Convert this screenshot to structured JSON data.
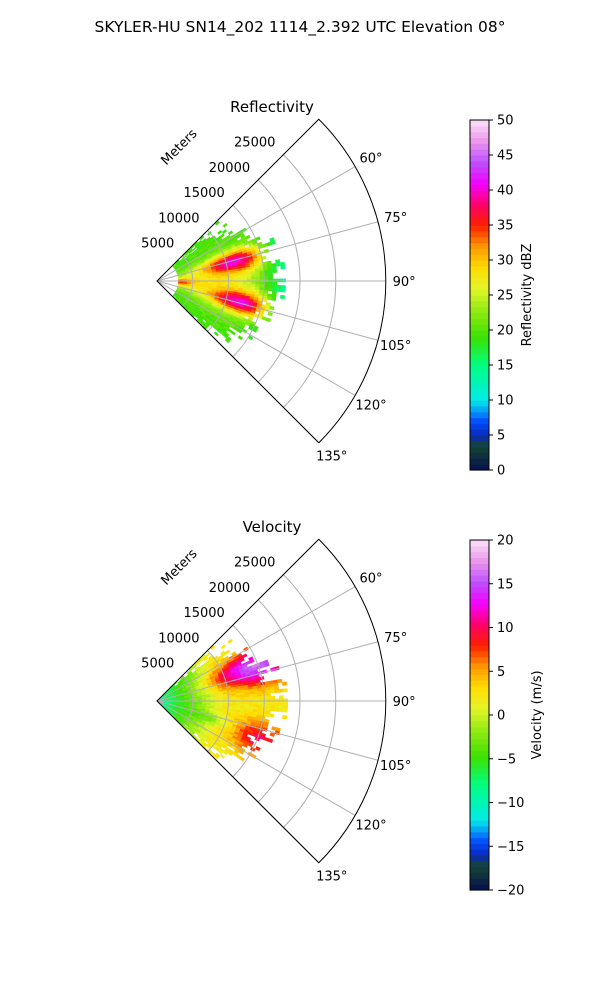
{
  "figure": {
    "title": "SKYLER-HU  SN14_202  1114_2.392 UTC Elevation 08°"
  },
  "chart_data": [
    {
      "type": "heatmap",
      "subtype": "polar-sector-ppi",
      "title": "Reflectivity",
      "range_label": "Meters",
      "range_ticks": [
        5000,
        10000,
        15000,
        20000,
        25000
      ],
      "range_tick_labels": [
        "5000",
        "10000",
        "15000",
        "20000",
        "25000"
      ],
      "range_max": 32000,
      "azimuth_ticks": [
        60,
        75,
        90,
        105,
        120,
        135
      ],
      "azimuth_tick_labels": [
        "60°",
        "75°",
        "90°",
        "105°",
        "120°",
        "135°"
      ],
      "azimuth_range": [
        45,
        135
      ],
      "grid": true,
      "colorbar": {
        "label": "Reflectivity dBZ",
        "min": 0,
        "max": 50,
        "ticks": [
          0,
          5,
          10,
          15,
          20,
          25,
          30,
          35,
          40,
          45,
          50
        ],
        "tick_labels": [
          "0",
          "5",
          "10",
          "15",
          "20",
          "25",
          "30",
          "35",
          "40",
          "45",
          "50"
        ]
      },
      "data_extent_m": [
        3000,
        18000
      ],
      "features": [
        {
          "azimuth": 75,
          "range": 11000,
          "value": 37
        },
        {
          "azimuth": 104,
          "range": 12000,
          "value": 37
        },
        {
          "azimuth": 95,
          "range": 2000,
          "value": 34
        }
      ]
    },
    {
      "type": "heatmap",
      "subtype": "polar-sector-ppi",
      "title": "Velocity",
      "range_label": "Meters",
      "range_ticks": [
        5000,
        10000,
        15000,
        20000,
        25000
      ],
      "range_tick_labels": [
        "5000",
        "10000",
        "15000",
        "20000",
        "25000"
      ],
      "range_max": 32000,
      "azimuth_ticks": [
        60,
        75,
        90,
        105,
        120,
        135
      ],
      "azimuth_tick_labels": [
        "60°",
        "75°",
        "90°",
        "105°",
        "120°",
        "135°"
      ],
      "azimuth_range": [
        45,
        135
      ],
      "grid": true,
      "colorbar": {
        "label": "Velocity (m/s)",
        "min": -20,
        "max": 20,
        "ticks": [
          -20,
          -15,
          -10,
          -5,
          0,
          5,
          10,
          15,
          20
        ],
        "tick_labels": [
          "−20",
          "−15",
          "−10",
          "−5",
          "0",
          "5",
          "10",
          "15",
          "20"
        ]
      },
      "data_extent_m": [
        0,
        18000
      ],
      "features": [
        {
          "azimuth": 90,
          "range": 2000,
          "value": -9
        },
        {
          "azimuth": 90,
          "range": 10000,
          "value": 2
        },
        {
          "azimuth": 70,
          "range": 14000,
          "value": 13
        }
      ]
    }
  ]
}
